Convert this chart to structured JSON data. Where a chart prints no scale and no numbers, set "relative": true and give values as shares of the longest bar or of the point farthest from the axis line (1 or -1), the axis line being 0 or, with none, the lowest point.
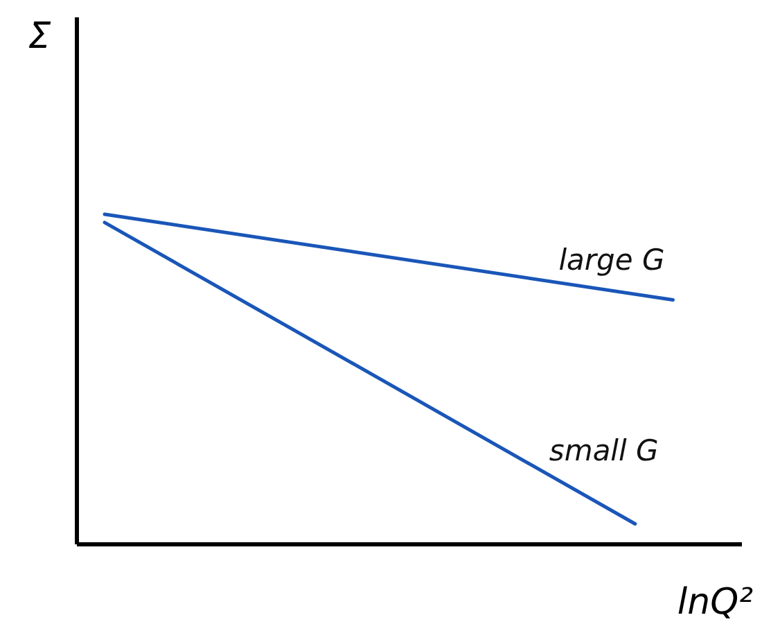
{
  "chart_data": {
    "type": "line",
    "relative": true,
    "xlabel": "lnQ²",
    "ylabel": "Σ",
    "marker": "none",
    "line_style": "solid",
    "categories": [
      null,
      null,
      null,
      null,
      null,
      null,
      null,
      null,
      null,
      null,
      null,
      null,
      null,
      null,
      null,
      null
    ],
    "series": [
      {
        "name": "large G",
        "color": "#1a56b8",
        "values": [
          1,
          null,
          null,
          null,
          null,
          null,
          null,
          null,
          null,
          null,
          null,
          null,
          null,
          null,
          null,
          0.74
        ]
      },
      {
        "name": "small G",
        "color": "#1a56b8",
        "values": [
          0.975,
          null,
          null,
          null,
          null,
          null,
          null,
          null,
          null,
          null,
          null,
          null,
          null,
          null,
          0.06,
          null
        ]
      }
    ]
  }
}
